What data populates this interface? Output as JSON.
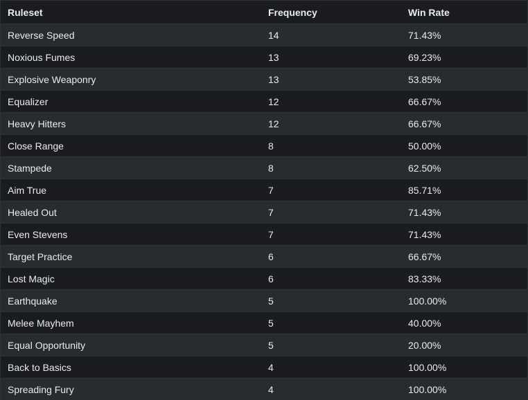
{
  "table": {
    "headers": [
      "Ruleset",
      "Frequency",
      "Win Rate"
    ],
    "rows": [
      [
        "Reverse Speed",
        "14",
        "71.43%"
      ],
      [
        "Noxious Fumes",
        "13",
        "69.23%"
      ],
      [
        "Explosive Weaponry",
        "13",
        "53.85%"
      ],
      [
        "Equalizer",
        "12",
        "66.67%"
      ],
      [
        "Heavy Hitters",
        "12",
        "66.67%"
      ],
      [
        "Close Range",
        "8",
        "50.00%"
      ],
      [
        "Stampede",
        "8",
        "62.50%"
      ],
      [
        "Aim True",
        "7",
        "85.71%"
      ],
      [
        "Healed Out",
        "7",
        "71.43%"
      ],
      [
        "Even Stevens",
        "7",
        "71.43%"
      ],
      [
        "Target Practice",
        "6",
        "66.67%"
      ],
      [
        "Lost Magic",
        "6",
        "83.33%"
      ],
      [
        "Earthquake",
        "5",
        "100.00%"
      ],
      [
        "Melee Mayhem",
        "5",
        "40.00%"
      ],
      [
        "Equal Opportunity",
        "5",
        "20.00%"
      ],
      [
        "Back to Basics",
        "4",
        "100.00%"
      ],
      [
        "Spreading Fury",
        "4",
        "100.00%"
      ]
    ]
  }
}
